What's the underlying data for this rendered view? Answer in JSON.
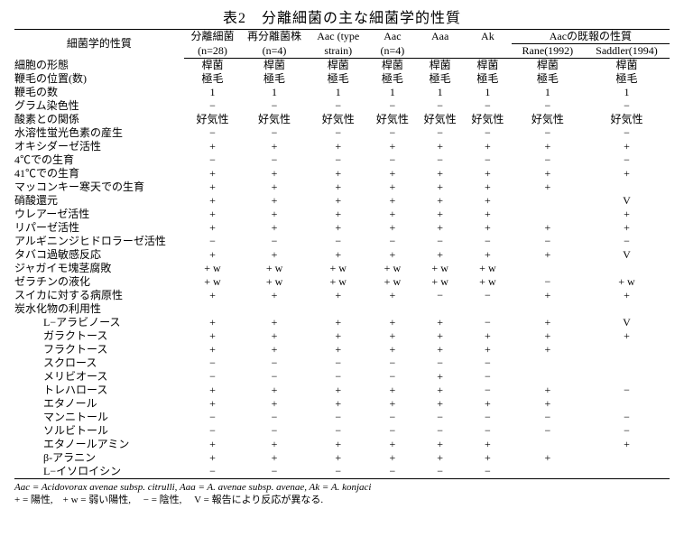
{
  "title": "表2　分離細菌の主な細菌学的性質",
  "widths": {
    "label": 178,
    "c1": 60,
    "c2": 70,
    "c3": 64,
    "c4": 50,
    "c5": 50,
    "c6": 50,
    "c7": 76,
    "c8": 90
  },
  "header": {
    "rowlabel": "細菌学的性質",
    "cols": [
      {
        "line1": "分離細菌",
        "line2": "(n=28)"
      },
      {
        "line1": "再分離菌株",
        "line2": "(n=4)"
      },
      {
        "line1": "Aac (type",
        "line2": "strain)"
      },
      {
        "line1": "Aac",
        "line2": "(n=4)"
      },
      {
        "line1": "Aaa",
        "line2": ""
      },
      {
        "line1": "Ak",
        "line2": ""
      }
    ],
    "group": {
      "label": "Aacの既報の性質",
      "sub": [
        "Rane(1992)",
        "Saddler(1994)"
      ]
    }
  },
  "rows": [
    {
      "label": "細胞の形態",
      "v": [
        "桿菌",
        "桿菌",
        "桿菌",
        "桿菌",
        "桿菌",
        "桿菌",
        "桿菌",
        "桿菌"
      ]
    },
    {
      "label": "鞭毛の位置(数)",
      "v": [
        "極毛",
        "極毛",
        "極毛",
        "極毛",
        "極毛",
        "極毛",
        "極毛",
        "極毛"
      ]
    },
    {
      "label": "鞭毛の数",
      "v": [
        "1",
        "1",
        "1",
        "1",
        "1",
        "1",
        "1",
        "1"
      ]
    },
    {
      "label": "グラム染色性",
      "v": [
        "−",
        "−",
        "−",
        "−",
        "−",
        "−",
        "−",
        "−"
      ]
    },
    {
      "label": "酸素との関係",
      "v": [
        "好気性",
        "好気性",
        "好気性",
        "好気性",
        "好気性",
        "好気性",
        "好気性",
        "好気性"
      ]
    },
    {
      "label": "水溶性蛍光色素の産生",
      "v": [
        "−",
        "−",
        "−",
        "−",
        "−",
        "−",
        "−",
        "−"
      ]
    },
    {
      "label": "オキシダーゼ活性",
      "v": [
        "+",
        "+",
        "+",
        "+",
        "+",
        "+",
        "+",
        "+"
      ]
    },
    {
      "label": "4℃での生育",
      "v": [
        "−",
        "−",
        "−",
        "−",
        "−",
        "−",
        "−",
        "−"
      ]
    },
    {
      "label": "41℃での生育",
      "v": [
        "+",
        "+",
        "+",
        "+",
        "+",
        "+",
        "+",
        "+"
      ]
    },
    {
      "label": "マッコンキー寒天での生育",
      "v": [
        "+",
        "+",
        "+",
        "+",
        "+",
        "+",
        "+",
        ""
      ]
    },
    {
      "label": "硝酸還元",
      "v": [
        "+",
        "+",
        "+",
        "+",
        "+",
        "+",
        "",
        "V"
      ]
    },
    {
      "label": "ウレアーゼ活性",
      "v": [
        "+",
        "+",
        "+",
        "+",
        "+",
        "+",
        "",
        "+"
      ]
    },
    {
      "label": "リパーゼ活性",
      "v": [
        "+",
        "+",
        "+",
        "+",
        "+",
        "+",
        "+",
        "+"
      ]
    },
    {
      "label": "アルギニンジヒドロラーゼ活性",
      "v": [
        "−",
        "−",
        "−",
        "−",
        "−",
        "−",
        "−",
        "−"
      ]
    },
    {
      "label": "タバコ過敏感反応",
      "v": [
        "+",
        "+",
        "+",
        "+",
        "+",
        "+",
        "+",
        "V"
      ]
    },
    {
      "label": "ジャガイモ塊茎腐敗",
      "v": [
        "+ w",
        "+ w",
        "+ w",
        "+ w",
        "+ w",
        "+ w",
        "",
        ""
      ]
    },
    {
      "label": "ゼラチンの液化",
      "v": [
        "+ w",
        "+ w",
        "+ w",
        "+ w",
        "+ w",
        "+ w",
        "−",
        "+ w"
      ]
    },
    {
      "label": "スイカに対する病原性",
      "v": [
        "+",
        "+",
        "+",
        "+",
        "−",
        "−",
        "+",
        "+"
      ]
    },
    {
      "label": "炭水化物の利用性",
      "v": [
        "",
        "",
        "",
        "",
        "",
        "",
        "",
        ""
      ]
    },
    {
      "label": "L−アラビノース",
      "indent": true,
      "v": [
        "+",
        "+",
        "+",
        "+",
        "+",
        "−",
        "+",
        "V"
      ]
    },
    {
      "label": "ガラクトース",
      "indent": true,
      "v": [
        "+",
        "+",
        "+",
        "+",
        "+",
        "+",
        "+",
        "+"
      ]
    },
    {
      "label": "フラクトース",
      "indent": true,
      "v": [
        "+",
        "+",
        "+",
        "+",
        "+",
        "+",
        "+",
        ""
      ]
    },
    {
      "label": "スクロース",
      "indent": true,
      "v": [
        "−",
        "−",
        "−",
        "−",
        "−",
        "−",
        "",
        ""
      ]
    },
    {
      "label": "メリビオース",
      "indent": true,
      "v": [
        "−",
        "−",
        "−",
        "−",
        "+",
        "−",
        "",
        ""
      ]
    },
    {
      "label": "トレハロース",
      "indent": true,
      "v": [
        "+",
        "+",
        "+",
        "+",
        "+",
        "−",
        "+",
        "−"
      ]
    },
    {
      "label": "エタノール",
      "indent": true,
      "v": [
        "+",
        "+",
        "+",
        "+",
        "+",
        "+",
        "+",
        ""
      ]
    },
    {
      "label": "マンニトール",
      "indent": true,
      "v": [
        "−",
        "−",
        "−",
        "−",
        "−",
        "−",
        "−",
        "−"
      ]
    },
    {
      "label": "ソルビトール",
      "indent": true,
      "v": [
        "−",
        "−",
        "−",
        "−",
        "−",
        "−",
        "−",
        "−"
      ]
    },
    {
      "label": "エタノールアミン",
      "indent": true,
      "v": [
        "+",
        "+",
        "+",
        "+",
        "+",
        "+",
        "",
        "+"
      ]
    },
    {
      "label": "β-アラニン",
      "indent": true,
      "v": [
        "+",
        "+",
        "+",
        "+",
        "+",
        "+",
        "+",
        ""
      ]
    },
    {
      "label": "L−イソロイシン",
      "indent": true,
      "v": [
        "−",
        "−",
        "−",
        "−",
        "−",
        "−",
        "",
        ""
      ]
    }
  ],
  "footnote": {
    "l1": "Aac = Acidovorax avenae subsp. citrulli,  Aaa = A. avenae subsp. avenae,  Ak = A. konjaci",
    "l2a": "+  = 陽性,　+ w = 弱い陽性,　 −  = 陰性,　  V  = 報告により反応が異なる."
  }
}
